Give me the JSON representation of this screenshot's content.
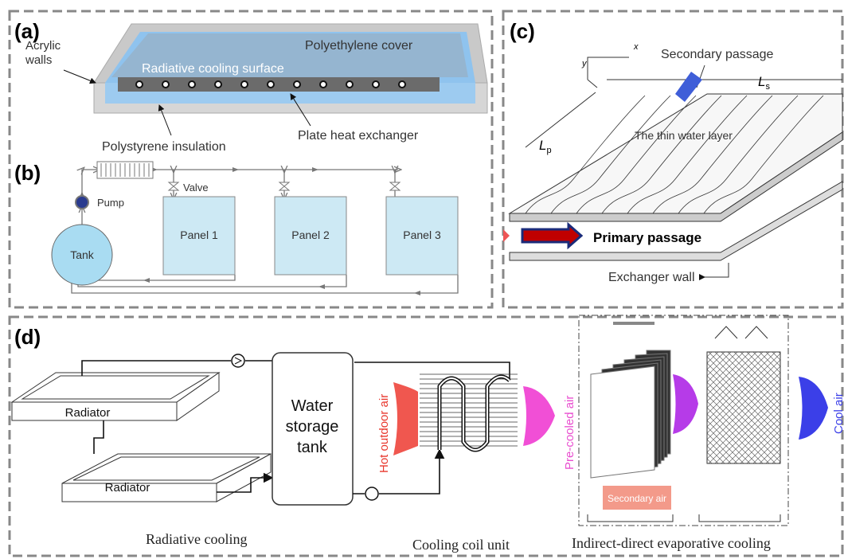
{
  "panel_a": {
    "label": "(a)",
    "acrylic_walls": [
      "Acrylic",
      "walls"
    ],
    "polyethylene_cover": "Polyethylene cover",
    "radiative_cooling_surface": "Radiative cooling surface",
    "plate_heat_exchanger": "Plate heat exchanger",
    "polystyrene_insulation": "Polystyrene insulation"
  },
  "panel_b": {
    "label": "(b)",
    "valve": "Valve",
    "pump": "Pump",
    "tank": "Tank",
    "panels": [
      "Panel 1",
      "Panel 2",
      "Panel 3"
    ]
  },
  "panel_c": {
    "label": "(c)",
    "x_axis": "x",
    "y_axis": "y",
    "secondary_passage": "Secondary passage",
    "length_s": {
      "symbol": "L",
      "subscript": "s"
    },
    "length_p": {
      "symbol": "L",
      "subscript": "p"
    },
    "thin_water_layer": "The thin water layer",
    "primary_passage": "Primary passage",
    "exchanger_wall": "Exchanger wall"
  },
  "panel_d": {
    "label": "(d)",
    "radiators": [
      "Radiator",
      "Radiator"
    ],
    "water_storage_tank": [
      "Water",
      "storage",
      "tank"
    ],
    "hot_outdoor_air": "Hot outdoor air",
    "pre_cooled_air": "Pre-cooled air",
    "secondary_air": "Secondary air",
    "cool_air": "Cool air",
    "captions": [
      "Radiative cooling",
      "Cooling coil unit",
      "Indirect-direct evaporative cooling"
    ]
  }
}
